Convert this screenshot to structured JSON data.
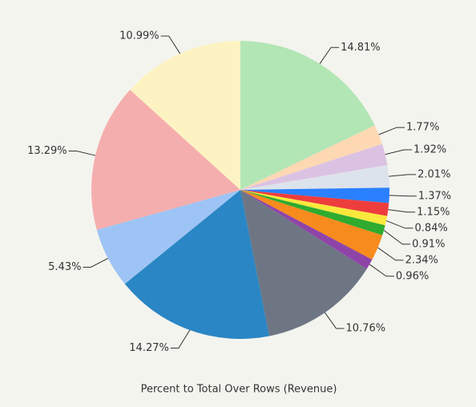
{
  "chart_data": {
    "type": "pie",
    "title": "Percent to Total Over Rows (Revenue)",
    "values": [
      14.81,
      1.77,
      1.92,
      2.01,
      1.37,
      1.15,
      0.84,
      0.91,
      2.34,
      0.96,
      10.76,
      14.27,
      5.43,
      13.29,
      10.99
    ],
    "value_labels": [
      "14.81%",
      "1.77%",
      "1.92%",
      "2.01%",
      "1.37%",
      "1.15%",
      "0.84%",
      "0.91%",
      "2.34%",
      "0.96%",
      "10.76%",
      "14.27%",
      "5.43%",
      "13.29%",
      "10.99%"
    ],
    "colors": [
      "#b3e6b5",
      "#fdd8b3",
      "#dcc2e2",
      "#dde3ec",
      "#2a80ff",
      "#ee3d3d",
      "#fbe83c",
      "#2fab2f",
      "#f78b1d",
      "#8f45a8",
      "#6e7684",
      "#2a86c4",
      "#9dc4f4",
      "#f5aeae",
      "#fdf3c2"
    ]
  }
}
